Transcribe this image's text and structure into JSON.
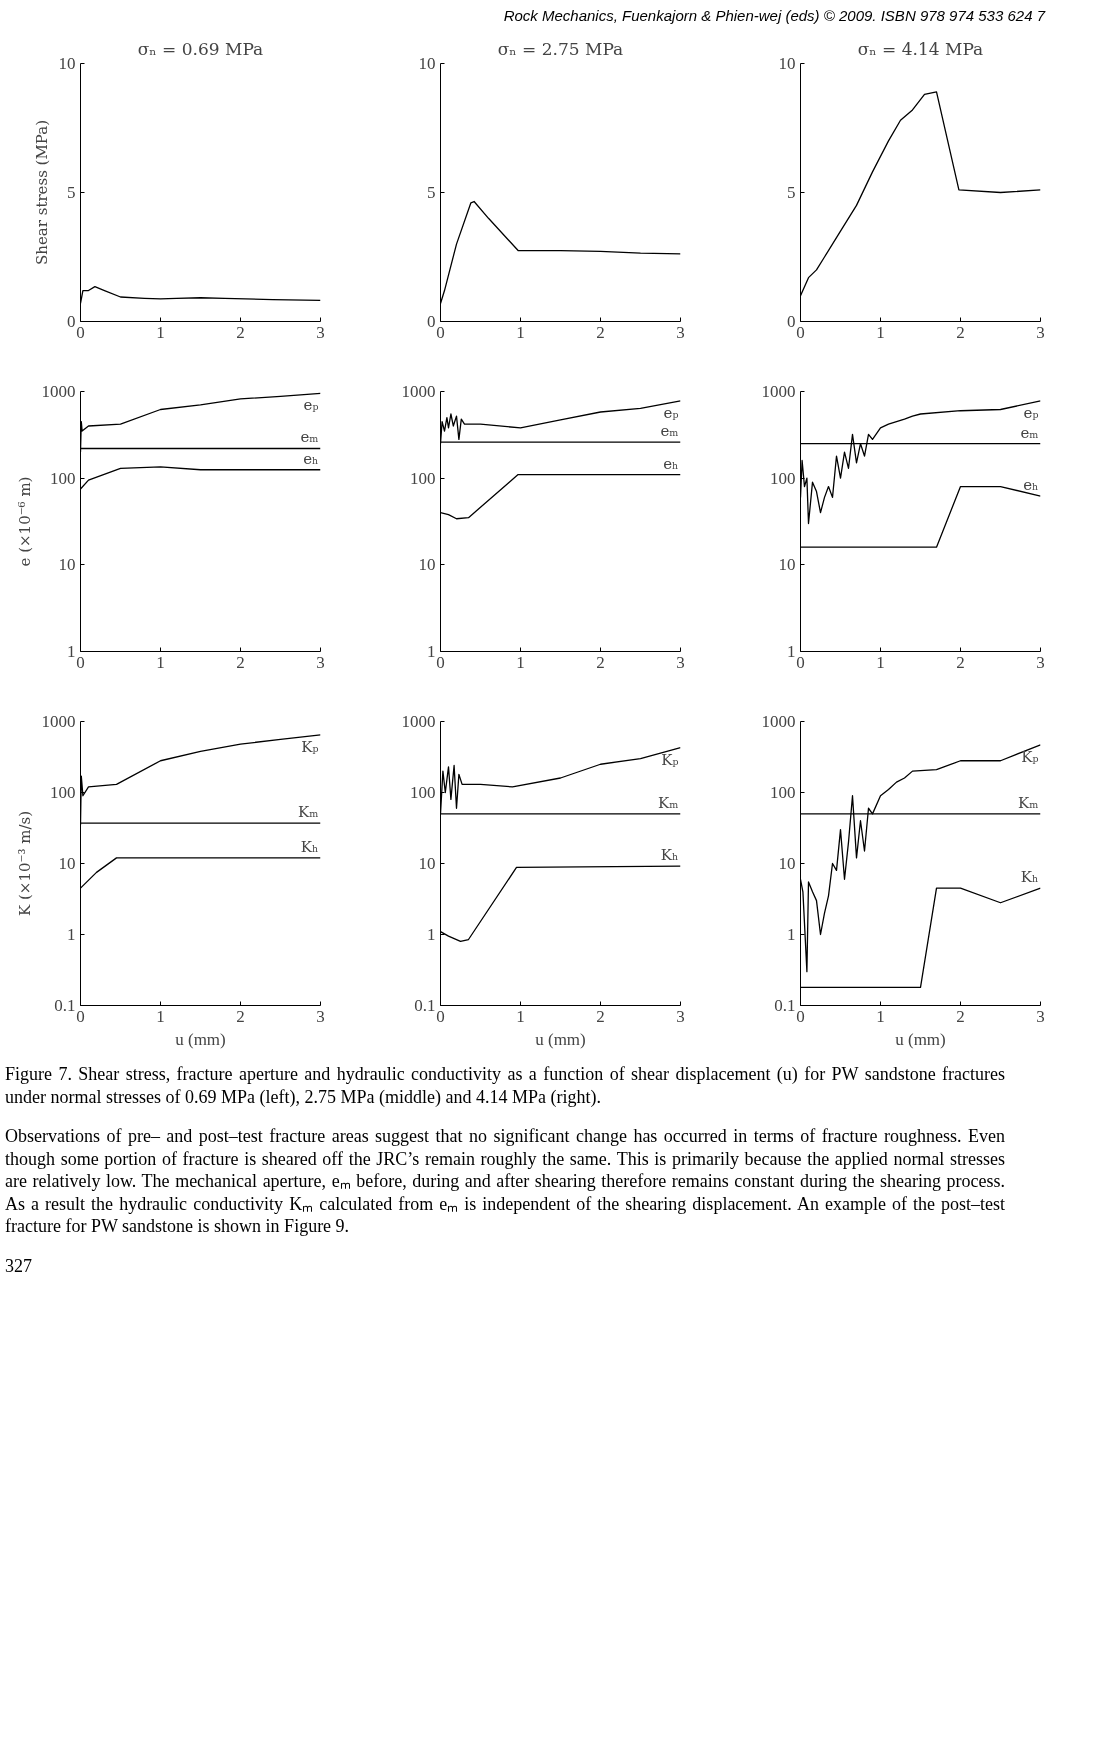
{
  "chart_data": [
    {
      "type": "line",
      "title": "σₙ = 0.69 MPa",
      "ylabel": "Shear stress (MPa)",
      "xlim": [
        0,
        3
      ],
      "xticks": [
        0,
        1,
        2,
        3
      ],
      "ylim": [
        0,
        10
      ],
      "yticks": [
        0,
        5,
        10
      ],
      "annotations": [
        "Rock Mechanics, Fuenkajorn & Phien-wej (eds) © 2009. ISBN 978 974 533 624 7"
      ],
      "series": [
        {
          "color": "#000000",
          "x": [
            0,
            0.03,
            0.1,
            0.18,
            0.3,
            0.5,
            0.8,
            1.0,
            1.2,
            1.5,
            1.8,
            2.4,
            3
          ],
          "values": [
            0.7,
            1.2,
            1.2,
            1.35,
            1.2,
            0.95,
            0.9,
            0.88,
            0.9,
            0.92,
            0.9,
            0.85,
            0.82
          ]
        }
      ]
    },
    {
      "type": "line",
      "title": "σₙ = 2.75 MPa",
      "xlim": [
        0,
        3
      ],
      "xticks": [
        0,
        1,
        2,
        3
      ],
      "ylim": [
        0,
        10
      ],
      "yticks": [
        0,
        5,
        10
      ],
      "series": [
        {
          "color": "#000000",
          "x": [
            0,
            0.05,
            0.2,
            0.38,
            0.42,
            0.6,
            0.97,
            1.5,
            2,
            2.5,
            3
          ],
          "values": [
            0.7,
            1.2,
            3.0,
            4.6,
            4.65,
            4.0,
            2.75,
            2.75,
            2.72,
            2.65,
            2.62
          ]
        }
      ]
    },
    {
      "type": "line",
      "title": "σₙ = 4.14 MPa",
      "xlim": [
        0,
        3
      ],
      "xticks": [
        0,
        1,
        2,
        3
      ],
      "ylim": [
        0,
        10
      ],
      "yticks": [
        0,
        5,
        10
      ],
      "series": [
        {
          "color": "#000000",
          "x": [
            0,
            0.1,
            0.2,
            0.3,
            0.5,
            0.7,
            0.9,
            1.1,
            1.25,
            1.4,
            1.55,
            1.7,
            1.98,
            2.5,
            3
          ],
          "values": [
            1.0,
            1.7,
            2.0,
            2.5,
            3.5,
            4.5,
            5.8,
            7.0,
            7.8,
            8.2,
            8.8,
            8.9,
            5.1,
            5.0,
            5.1
          ]
        }
      ]
    },
    {
      "type": "line",
      "ylabel": "e (×10⁻⁶ m)",
      "log": true,
      "xlim": [
        0,
        3
      ],
      "xticks": [
        0,
        1,
        2,
        3
      ],
      "ylim": [
        1,
        1000
      ],
      "yticks": [
        1,
        10,
        100,
        1000
      ],
      "series": [
        {
          "name": "eₚ",
          "color": "#000000",
          "x": [
            0,
            0.01,
            0.02,
            0.1,
            0.5,
            1,
            1.5,
            2,
            2.5,
            3
          ],
          "values": [
            200,
            450,
            350,
            400,
            420,
            620,
            700,
            820,
            880,
            950
          ]
        },
        {
          "name": "eₘ",
          "color": "#000000",
          "x": [
            0,
            3
          ],
          "values": [
            220,
            220
          ]
        },
        {
          "name": "eₕ",
          "color": "#000000",
          "x": [
            0,
            0.1,
            0.5,
            1,
            1.5,
            3
          ],
          "values": [
            75,
            95,
            130,
            135,
            125,
            125
          ]
        }
      ]
    },
    {
      "type": "line",
      "log": true,
      "xlim": [
        0,
        3
      ],
      "xticks": [
        0,
        1,
        2,
        3
      ],
      "ylim": [
        1,
        1000
      ],
      "yticks": [
        1,
        10,
        100,
        1000
      ],
      "series": [
        {
          "name": "eₚ",
          "color": "#000000",
          "x": [
            0,
            0.02,
            0.05,
            0.08,
            0.1,
            0.13,
            0.16,
            0.2,
            0.23,
            0.26,
            0.3,
            0.5,
            1,
            1.5,
            2,
            2.5,
            3
          ],
          "values": [
            250,
            450,
            350,
            500,
            380,
            550,
            400,
            520,
            280,
            480,
            420,
            420,
            380,
            470,
            580,
            640,
            780
          ]
        },
        {
          "name": "eₘ",
          "color": "#000000",
          "x": [
            0,
            3
          ],
          "values": [
            260,
            260
          ]
        },
        {
          "name": "eₕ",
          "color": "#000000",
          "x": [
            0,
            0.1,
            0.2,
            0.35,
            0.97,
            3
          ],
          "values": [
            40,
            38,
            34,
            35,
            110,
            110
          ]
        }
      ]
    },
    {
      "type": "line",
      "log": true,
      "xlim": [
        0,
        3
      ],
      "xticks": [
        0,
        1,
        2,
        3
      ],
      "ylim": [
        1,
        1000
      ],
      "yticks": [
        1,
        10,
        100,
        1000
      ],
      "series": [
        {
          "name": "eₚ",
          "color": "#000000",
          "x": [
            0,
            0.02,
            0.05,
            0.08,
            0.1,
            0.15,
            0.2,
            0.25,
            0.3,
            0.35,
            0.4,
            0.45,
            0.5,
            0.55,
            0.6,
            0.65,
            0.7,
            0.75,
            0.8,
            0.85,
            0.9,
            1.0,
            1.1,
            1.2,
            1.3,
            1.4,
            1.5,
            2,
            2.5,
            3
          ],
          "values": [
            60,
            160,
            80,
            100,
            30,
            90,
            70,
            40,
            60,
            80,
            60,
            180,
            100,
            200,
            130,
            320,
            150,
            250,
            180,
            320,
            280,
            380,
            420,
            450,
            480,
            520,
            550,
            600,
            620,
            780
          ]
        },
        {
          "name": "eₘ",
          "color": "#000000",
          "x": [
            0,
            3
          ],
          "values": [
            250,
            250
          ]
        },
        {
          "name": "eₕ",
          "color": "#000000",
          "x": [
            0,
            1.7,
            2,
            2.5,
            3
          ],
          "values": [
            16,
            16,
            80,
            80,
            62
          ]
        }
      ]
    },
    {
      "type": "line",
      "ylabel": "K (×10⁻³ m/s)",
      "xlabel": "u (mm)",
      "log": true,
      "xlim": [
        0,
        3
      ],
      "xticks": [
        0,
        1,
        2,
        3
      ],
      "ylim": [
        0.1,
        1000
      ],
      "yticks": [
        0.1,
        1,
        10,
        100,
        1000
      ],
      "series": [
        {
          "name": "Kₚ",
          "color": "#000000",
          "x": [
            0,
            0.01,
            0.03,
            0.1,
            0.45,
            1,
            1.5,
            2,
            2.5,
            3
          ],
          "values": [
            35,
            170,
            90,
            120,
            130,
            280,
            380,
            480,
            560,
            650
          ]
        },
        {
          "name": "Kₘ",
          "color": "#000000",
          "x": [
            0,
            3
          ],
          "values": [
            37,
            37
          ]
        },
        {
          "name": "Kₕ",
          "color": "#000000",
          "x": [
            0,
            0.2,
            0.45,
            3
          ],
          "values": [
            4.5,
            7.5,
            12,
            12
          ]
        }
      ]
    },
    {
      "type": "line",
      "xlabel": "u (mm)",
      "log": true,
      "xlim": [
        0,
        3
      ],
      "xticks": [
        0,
        1,
        2,
        3
      ],
      "ylim": [
        0.1,
        1000
      ],
      "yticks": [
        0.1,
        1,
        10,
        100,
        1000
      ],
      "series": [
        {
          "name": "Kₚ",
          "color": "#000000",
          "x": [
            0,
            0.03,
            0.06,
            0.1,
            0.13,
            0.17,
            0.2,
            0.23,
            0.27,
            0.5,
            0.9,
            1.5,
            2,
            2.5,
            3
          ],
          "values": [
            50,
            200,
            100,
            230,
            80,
            240,
            60,
            180,
            130,
            130,
            120,
            160,
            250,
            300,
            430
          ]
        },
        {
          "name": "Kₘ",
          "color": "#000000",
          "x": [
            0,
            3
          ],
          "values": [
            50,
            50
          ]
        },
        {
          "name": "Kₕ",
          "color": "#000000",
          "x": [
            0,
            0.1,
            0.25,
            0.35,
            0.95,
            3
          ],
          "values": [
            1.1,
            0.95,
            0.8,
            0.85,
            8.8,
            9.2
          ]
        }
      ]
    },
    {
      "type": "line",
      "xlabel": "u (mm)",
      "log": true,
      "xlim": [
        0,
        3
      ],
      "xticks": [
        0,
        1,
        2,
        3
      ],
      "ylim": [
        0.1,
        1000
      ],
      "yticks": [
        0.1,
        1,
        10,
        100,
        1000
      ],
      "annotations": [
        "Figure 7. Shear stress, fracture aperture and hydraulic conductivity as a function of shear displacement (u) for PW sandstone fractures under normal stresses of 0.69 MPa (left), 2.75 MPa (middle) and 4.14 MPa (right).",
        "Observations of pre– and post–test fracture areas suggest that no significant change has occurred in terms of fracture roughness.  Even though some portion of fracture is sheared off the JRC’s remain roughly the same.  This is primarily because the applied normal stresses are relatively low.  The mechanical aperture, eₘ before, during and after shearing therefore remains constant during the shearing process.  As a result the hydraulic conductivity Kₘ calculated from eₘ is independent of the shearing displacement.  An example of the post–test fracture for PW sandstone is shown in Figure 9.",
        "327"
      ],
      "series": [
        {
          "name": "Kₚ",
          "color": "#000000",
          "x": [
            0,
            0.03,
            0.08,
            0.1,
            0.15,
            0.2,
            0.25,
            0.3,
            0.35,
            0.4,
            0.45,
            0.5,
            0.55,
            0.6,
            0.65,
            0.7,
            0.75,
            0.8,
            0.85,
            0.9,
            1.0,
            1.1,
            1.2,
            1.3,
            1.4,
            1.7,
            2.0,
            2.5,
            3
          ],
          "values": [
            6,
            4,
            0.3,
            5.5,
            4,
            3,
            1,
            2,
            3.5,
            10,
            8,
            30,
            6,
            20,
            90,
            12,
            40,
            15,
            60,
            50,
            90,
            110,
            140,
            160,
            200,
            210,
            280,
            280,
            470
          ]
        },
        {
          "name": "Kₘ",
          "color": "#000000",
          "x": [
            0,
            3
          ],
          "values": [
            50,
            50
          ]
        },
        {
          "name": "Kₕ",
          "color": "#000000",
          "x": [
            0,
            1.5,
            1.7,
            2,
            2.5,
            3
          ],
          "values": [
            0.18,
            0.18,
            4.5,
            4.5,
            2.8,
            4.5
          ]
        }
      ]
    }
  ]
}
